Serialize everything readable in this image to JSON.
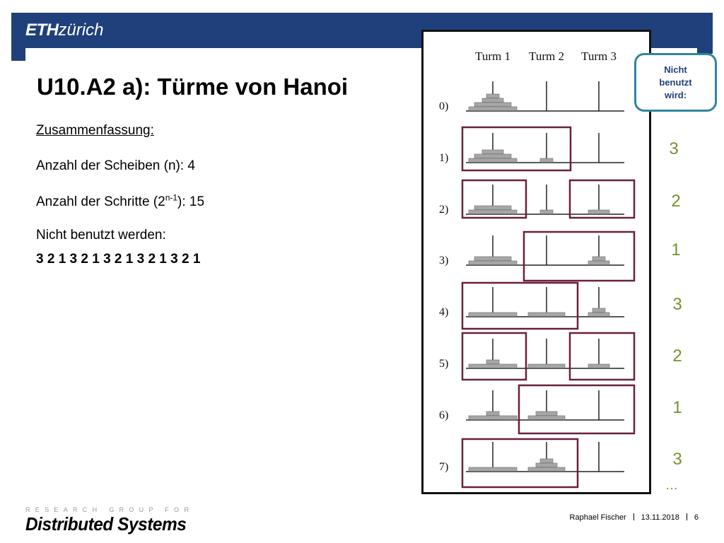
{
  "header": {
    "logo_bold": "ETH",
    "logo_rest": "zürich",
    "brand_color": "#1f407a"
  },
  "slide": {
    "title": "U10.A2 a): Türme von Hanoi",
    "summary_heading": "Zusammenfassung:",
    "disks_line": "Anzahl der Scheiben (n): 4",
    "steps_prefix": "Anzahl der Schritte (2",
    "steps_sup": "n-1",
    "steps_suffix": "): 15",
    "unused_label": "Nicht benutzt werden:",
    "unused_sequence": "3 2 1 3 2 1 3 2 1 3 2 1 3 2 1"
  },
  "figure": {
    "tower_labels": [
      "Turm 1",
      "Turm 2",
      "Turm 3"
    ],
    "step_labels": [
      "0)",
      "1)",
      "2)",
      "3)",
      "4)",
      "5)",
      "6)",
      "7)"
    ],
    "frame_color": "#6b1f3e",
    "disk_color": "#a6a6a6"
  },
  "callout": {
    "line1": "Nicht",
    "line2": "benutzt",
    "line3": "wird:",
    "border_color": "#31859c"
  },
  "unused_towers": {
    "values": [
      "3",
      "2",
      "1",
      "3",
      "2",
      "1",
      "3"
    ],
    "ellipsis": "…",
    "color": "#76922a"
  },
  "footer": {
    "group_label": "RESEARCH GROUP FOR",
    "group_name": "Distributed Systems",
    "author": "Raphael Fischer",
    "date": "13.11.2018",
    "page": "6"
  }
}
